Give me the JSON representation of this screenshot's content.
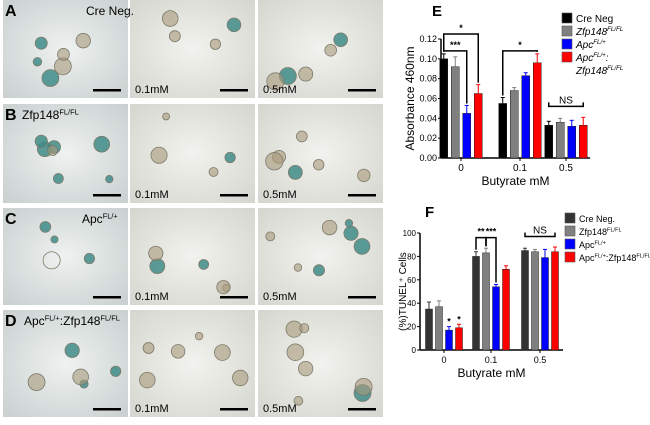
{
  "panels": [
    {
      "letter": "A",
      "genotype": "Cre Neg.",
      "sup": "",
      "conc": [
        "",
        "0.1mM",
        "0.5mM"
      ]
    },
    {
      "letter": "B",
      "genotype": "Zfp148",
      "sup": "FL/FL",
      "conc": [
        "",
        "0.1mM",
        "0.5mM"
      ]
    },
    {
      "letter": "C",
      "genotype": "Apc",
      "sup": "FL/+",
      "conc": [
        "",
        "0.1mM",
        "0.5mM"
      ]
    },
    {
      "letter": "D",
      "genotype": "Apc",
      "sup": "FL/+",
      "genotype2": ":Zfp148",
      "sup2": "FL/FL",
      "conc": [
        "",
        "0.1mM",
        "0.5mM"
      ]
    }
  ],
  "colors": {
    "cre": "#000000",
    "zfp": "#808080",
    "apc": "#0000ff",
    "double": "#ff0000",
    "creF": "#333333"
  },
  "chart_data": [
    {
      "panel": "E",
      "type": "bar",
      "categories": [
        "0",
        "0.1",
        "0.5"
      ],
      "xlabel": "Butyrate mM",
      "ylabel": "Absorbance 460nm",
      "ylim": [
        0,
        0.12
      ],
      "yticks": [
        "0.00",
        "0.02",
        "0.04",
        "0.06",
        "0.08",
        "0.10",
        "0.12"
      ],
      "legend": {
        "placement": "top-right",
        "entries": [
          {
            "label": "Cre Neg",
            "sup": ""
          },
          {
            "label": "Zfp148",
            "sup": "FL/FL"
          },
          {
            "label": "Apc",
            "sup": "FL/+"
          },
          {
            "label": "Apc",
            "sup": "FL/+",
            "label2": "Zfp148",
            "sup2": "FL/FL"
          }
        ]
      },
      "series": [
        {
          "name": "Cre Neg",
          "values": [
            0.1,
            0.055,
            0.033
          ],
          "errors": [
            0.005,
            0.006,
            0.004
          ]
        },
        {
          "name": "Zfp148 FL/FL",
          "values": [
            0.092,
            0.068,
            0.036
          ],
          "errors": [
            0.01,
            0.003,
            0.004
          ]
        },
        {
          "name": "Apc FL/+",
          "values": [
            0.045,
            0.083,
            0.032
          ],
          "errors": [
            0.008,
            0.003,
            0.006
          ]
        },
        {
          "name": "Apc FL/+:Zfp148 FL/FL",
          "values": [
            0.065,
            0.096,
            0.033
          ],
          "errors": [
            0.009,
            0.009,
            0.008
          ]
        }
      ],
      "annotations": [
        {
          "text": "*",
          "group": 0,
          "from": 0,
          "to": 3,
          "level": 0.125
        },
        {
          "text": "***",
          "group": 0,
          "from": 0,
          "to": 2,
          "level": 0.108
        },
        {
          "text": "*",
          "group": 1,
          "from": 0,
          "to": 3,
          "level": 0.108
        },
        {
          "text": "NS",
          "group": 2,
          "from": 0,
          "to": 3,
          "level": 0.052
        }
      ]
    },
    {
      "panel": "F",
      "type": "bar",
      "categories": [
        "0",
        "0.1",
        "0.5"
      ],
      "xlabel": "Butyrate mM",
      "ylabel": "(%)TUNEL⁺ Cells",
      "ylim": [
        0,
        100
      ],
      "yticks": [
        "0",
        "20",
        "40",
        "60",
        "80",
        "100"
      ],
      "legend": {
        "placement": "top-right",
        "entries": [
          {
            "label": "Cre Neg.",
            "sup": ""
          },
          {
            "label": "Zfp148",
            "sup": "FL/FL"
          },
          {
            "label": "Apc",
            "sup": "FL/+"
          },
          {
            "label": "Apc",
            "sup": "FL/+",
            "label2": ":Zfp148",
            "sup2": "FL/FL"
          }
        ]
      },
      "series": [
        {
          "name": "Cre Neg.",
          "values": [
            35,
            80,
            85
          ],
          "errors": [
            6,
            4,
            2
          ]
        },
        {
          "name": "Zfp148 FL/FL",
          "values": [
            37,
            83,
            84
          ],
          "errors": [
            5,
            4,
            2
          ]
        },
        {
          "name": "Apc FL/+",
          "values": [
            17,
            54,
            79
          ],
          "errors": [
            3,
            2,
            7
          ]
        },
        {
          "name": "Apc FL/+:Zfp148 FL/FL",
          "values": [
            19,
            69,
            84
          ],
          "errors": [
            3,
            3,
            4
          ]
        }
      ],
      "annotations": [
        {
          "text": "**",
          "group": 1,
          "from": 0,
          "to": 1,
          "level": 96
        },
        {
          "text": "***",
          "group": 1,
          "from": 1,
          "to": 2,
          "level": 96
        },
        {
          "text": "NS",
          "group": 2,
          "from": 0,
          "to": 3,
          "level": 97
        },
        {
          "text": "*",
          "group": 0,
          "bar": 2,
          "star": true
        },
        {
          "text": "*",
          "group": 0,
          "bar": 3,
          "star": true
        }
      ]
    }
  ]
}
